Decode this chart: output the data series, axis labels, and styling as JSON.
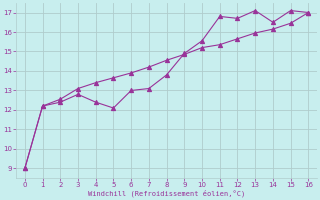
{
  "xlabel": "Windchill (Refroidissement éolien,°C)",
  "bg_color": "#c8eeee",
  "grid_color": "#b0cccc",
  "line_color": "#993399",
  "xlim": [
    -0.5,
    16.5
  ],
  "ylim": [
    8.5,
    17.5
  ],
  "xticks": [
    0,
    1,
    2,
    3,
    4,
    5,
    6,
    7,
    8,
    9,
    10,
    11,
    12,
    13,
    14,
    15,
    16
  ],
  "yticks": [
    9,
    10,
    11,
    12,
    13,
    14,
    15,
    16,
    17
  ],
  "line1_x": [
    0,
    1,
    2,
    3,
    4,
    5,
    6,
    7,
    8,
    9,
    10,
    11,
    12,
    13,
    14,
    15,
    16
  ],
  "line1_y": [
    9.0,
    12.2,
    12.4,
    12.8,
    12.4,
    12.1,
    13.0,
    13.1,
    13.8,
    14.9,
    15.55,
    16.8,
    16.7,
    17.1,
    16.5,
    17.1,
    17.0
  ],
  "line2_x": [
    0,
    1,
    2,
    3,
    4,
    5,
    6,
    7,
    8,
    9,
    10,
    11,
    12,
    13,
    14,
    15,
    16
  ],
  "line2_y": [
    9.0,
    12.2,
    12.55,
    13.1,
    13.4,
    13.65,
    13.9,
    14.2,
    14.55,
    14.85,
    15.2,
    15.35,
    15.65,
    15.95,
    16.15,
    16.45,
    17.0
  ]
}
